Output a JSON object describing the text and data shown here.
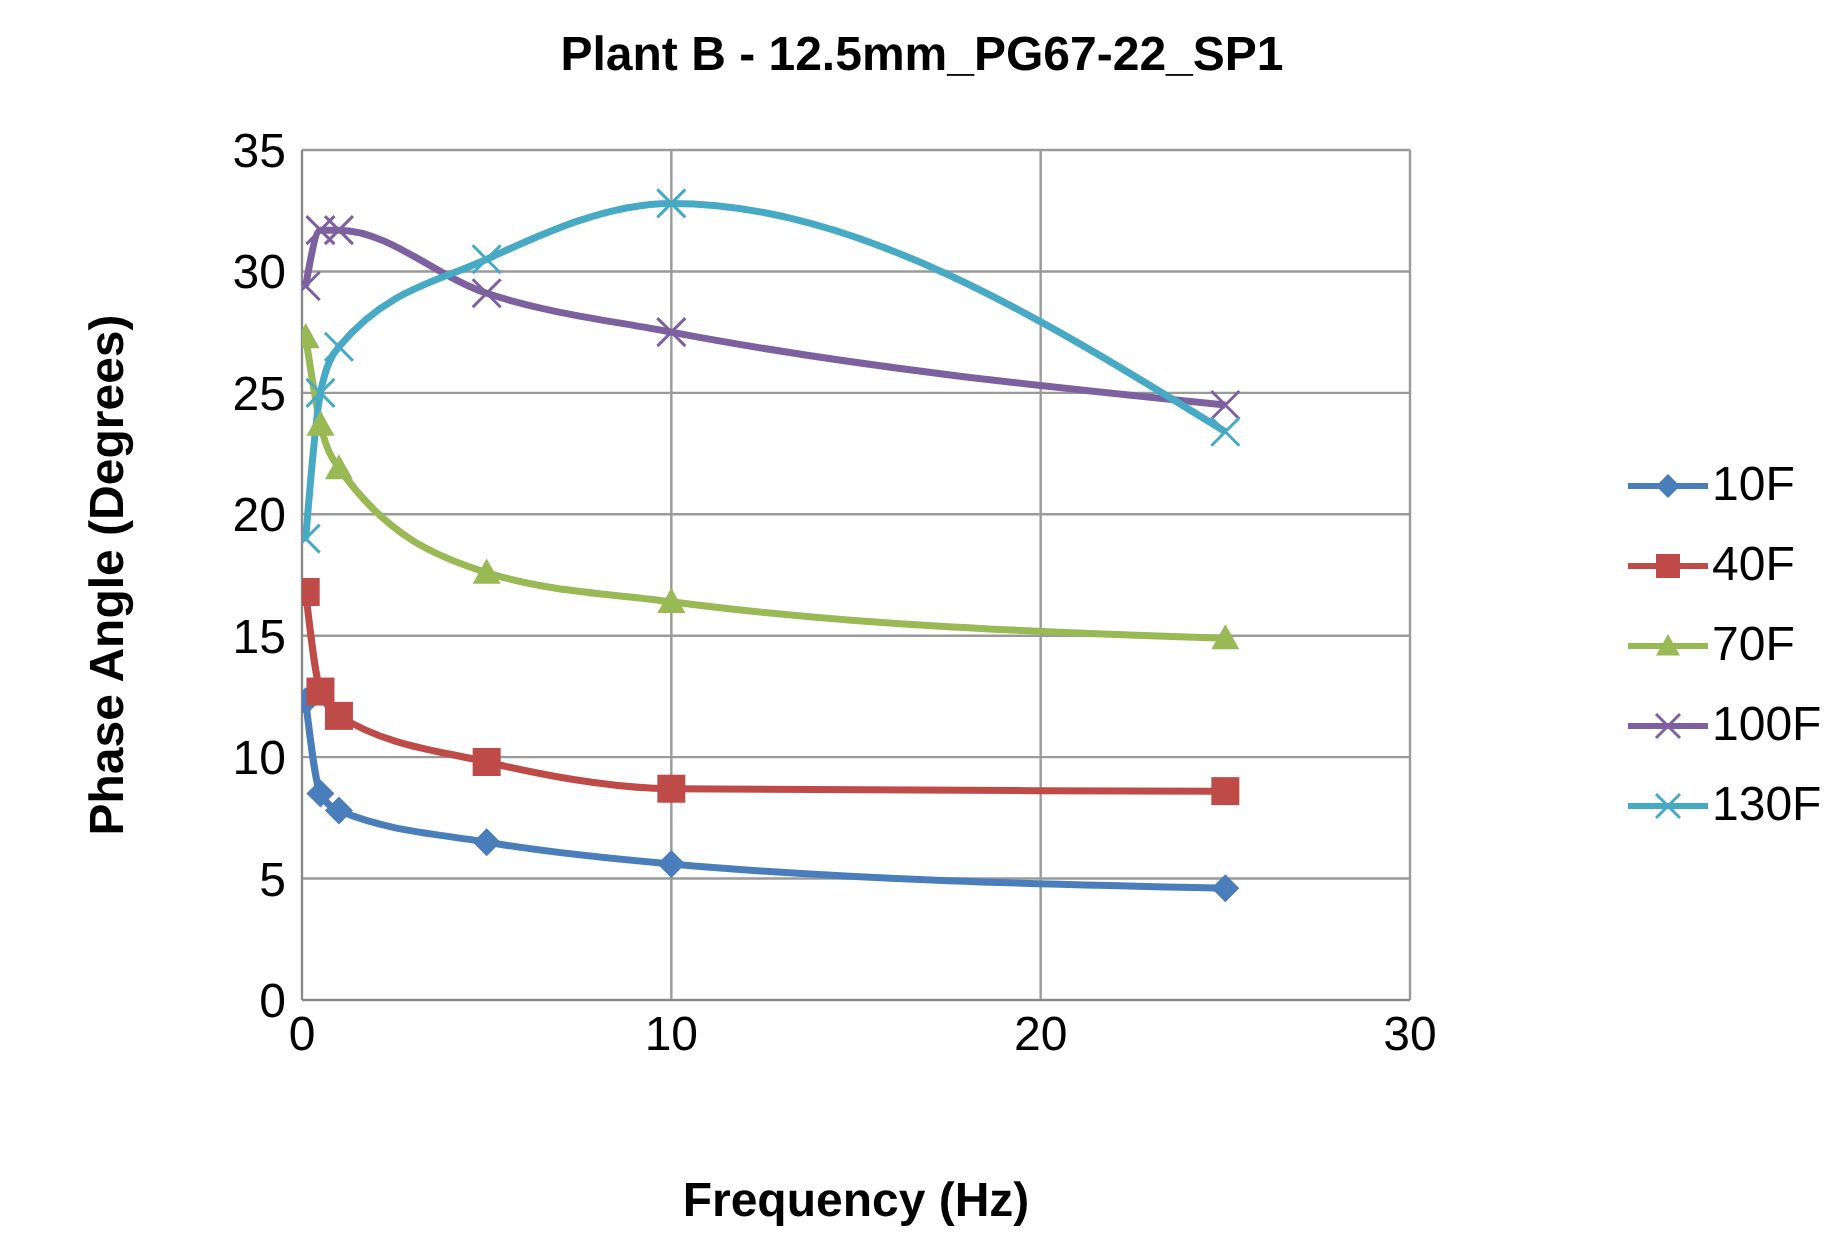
{
  "chart_data": {
    "type": "line",
    "title": "Plant B - 12.5mm_PG67-22_SP1",
    "xlabel": "Frequency (Hz)",
    "ylabel": "Phase Angle (Degrees)",
    "x": [
      0.1,
      0.5,
      1,
      5,
      10,
      25
    ],
    "series": [
      {
        "name": "10F",
        "color": "#4a7ebb",
        "marker": "diamond",
        "values": [
          12.3,
          8.5,
          7.8,
          6.5,
          5.6,
          4.6
        ]
      },
      {
        "name": "40F",
        "color": "#be4b48",
        "marker": "square",
        "values": [
          16.8,
          12.7,
          11.7,
          9.8,
          8.7,
          8.6
        ]
      },
      {
        "name": "70F",
        "color": "#98b954",
        "marker": "triangle",
        "values": [
          27.3,
          23.7,
          21.9,
          17.6,
          16.4,
          14.9
        ]
      },
      {
        "name": "100F",
        "color": "#7d60a0",
        "marker": "cross",
        "values": [
          29.4,
          31.7,
          31.7,
          29.1,
          27.5,
          24.5
        ]
      },
      {
        "name": "130F",
        "color": "#46aac5",
        "marker": "cross",
        "values": [
          19.0,
          25.0,
          26.9,
          30.5,
          32.8,
          23.4
        ]
      }
    ],
    "xlim": [
      0,
      30
    ],
    "xticks": [
      0,
      10,
      20,
      30
    ],
    "ylim": [
      0,
      35
    ],
    "yticks": [
      0,
      5,
      10,
      15,
      20,
      25,
      30,
      35
    ],
    "grid": true,
    "legend": "right",
    "line_style": "solid"
  }
}
